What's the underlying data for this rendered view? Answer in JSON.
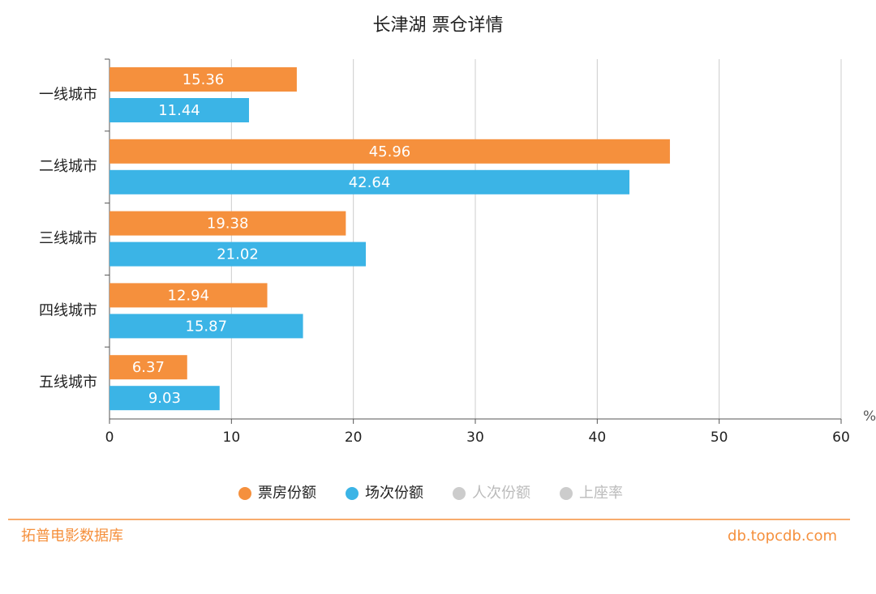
{
  "chart_data": {
    "type": "barh",
    "title": "长津湖 票仓详情",
    "categories": [
      "一线城市",
      "二线城市",
      "三线城市",
      "四线城市",
      "五线城市"
    ],
    "series": [
      {
        "name": "票房份额",
        "color": "#f5903d",
        "visible": true,
        "values": [
          15.36,
          45.96,
          19.38,
          12.94,
          6.37
        ]
      },
      {
        "name": "场次份额",
        "color": "#3bb4e6",
        "visible": true,
        "values": [
          11.44,
          42.64,
          21.02,
          15.87,
          9.03
        ]
      },
      {
        "name": "人次份额",
        "color": "#cccccc",
        "visible": false,
        "values": [
          null,
          null,
          null,
          null,
          null
        ]
      },
      {
        "name": "上座率",
        "color": "#cccccc",
        "visible": false,
        "values": [
          null,
          null,
          null,
          null,
          null
        ]
      }
    ],
    "xlabel": "%",
    "xlim": [
      0,
      60
    ],
    "xticks": [
      0,
      10,
      20,
      30,
      40,
      50,
      60
    ],
    "grid": true,
    "legend": "bottom"
  },
  "footer": {
    "left": "拓普电影数据库",
    "right": "db.topcdb.com"
  }
}
